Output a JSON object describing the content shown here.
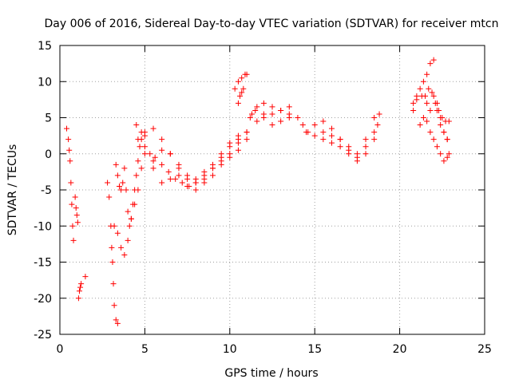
{
  "chart_data": {
    "type": "scatter",
    "title": "Day 006 of 2016, Sidereal Day-to-day VTEC variation (SDTVAR) for receiver mtcn",
    "xlabel": "GPS time / hours",
    "ylabel": "SDTVAR / TECUs",
    "xlim": [
      0,
      25
    ],
    "ylim": [
      -25,
      15
    ],
    "xticks": [
      0,
      5,
      10,
      15,
      20,
      25
    ],
    "yticks": [
      -25,
      -20,
      -15,
      -10,
      -5,
      0,
      5,
      10,
      15
    ],
    "grid": true,
    "marker": "+",
    "color": "#ff0000",
    "series": [
      {
        "name": "seg-a1",
        "x": [
          0.4,
          0.5,
          0.55,
          0.6,
          0.65,
          0.7,
          0.75,
          0.8
        ],
        "y": [
          3.5,
          2,
          0.5,
          -1,
          -4,
          -7,
          -10,
          -12
        ]
      },
      {
        "name": "seg-a2",
        "x": [
          0.9,
          0.95,
          1.0,
          1.05
        ],
        "y": [
          -6,
          -7.5,
          -8.5,
          -9.5
        ]
      },
      {
        "name": "seg-a3",
        "x": [
          1.1,
          1.15,
          1.2,
          1.25,
          1.5
        ],
        "y": [
          -20,
          -19,
          -18.5,
          -18,
          -17
        ]
      },
      {
        "name": "seg-b1",
        "x": [
          2.8,
          2.9,
          3.0,
          3.05,
          3.1,
          3.15,
          3.2,
          3.3,
          3.4
        ],
        "y": [
          -4,
          -6,
          -10,
          -13,
          -15,
          -18,
          -21,
          -23,
          -23.5
        ]
      },
      {
        "name": "seg-b2",
        "x": [
          3.3,
          3.4,
          3.5,
          3.6,
          3.7,
          3.8,
          3.9,
          4.0,
          4.1,
          4.2,
          4.3,
          4.4,
          4.5,
          4.6,
          4.7,
          4.8
        ],
        "y": [
          -1.5,
          -3,
          -4.5,
          -5,
          -4,
          -2,
          -5,
          -8,
          -10,
          -9,
          -7,
          -5,
          -3,
          -1,
          1,
          3
        ]
      },
      {
        "name": "seg-b3",
        "x": [
          3.2,
          3.4,
          3.6,
          3.8,
          4.0,
          4.2,
          4.4,
          4.6,
          4.8,
          5.0
        ],
        "y": [
          -10,
          -11,
          -13,
          -14,
          -12,
          -9,
          -7,
          -5,
          -2,
          2.5
        ]
      },
      {
        "name": "seg-c1",
        "x": [
          4.5,
          4.8,
          5.0,
          5.3,
          5.6,
          6.0,
          6.4,
          6.8,
          7.2,
          7.6,
          8.0,
          8.5,
          9.0,
          9.5,
          10.0,
          10.5
        ],
        "y": [
          4,
          2,
          1,
          0,
          -0.5,
          -1.5,
          -2.5,
          -3.5,
          -4,
          -4.5,
          -4,
          -3,
          -2,
          -1,
          0,
          1.5
        ]
      },
      {
        "name": "seg-c2",
        "x": [
          4.6,
          5.0,
          5.5,
          6.0,
          6.5,
          7.0,
          7.5,
          8.0,
          8.5,
          9.0,
          9.5,
          10.0,
          10.5,
          11.0
        ],
        "y": [
          2,
          3,
          3.5,
          2,
          0,
          -2,
          -3.5,
          -4,
          -3.5,
          -2,
          -0.5,
          1,
          2,
          3
        ]
      },
      {
        "name": "seg-c3",
        "x": [
          5.0,
          5.5,
          6.0,
          6.5,
          7.0,
          7.5,
          8.0,
          8.5,
          9.0,
          9.5,
          10.0,
          10.5
        ],
        "y": [
          0,
          -1,
          0.5,
          0,
          -1.5,
          -3,
          -3.5,
          -2.5,
          -1.5,
          0,
          1.5,
          2.5
        ]
      },
      {
        "name": "seg-c4",
        "x": [
          5.5,
          6.0,
          6.5,
          7.0,
          7.5,
          8.0,
          8.5,
          9.0,
          9.5,
          10.0,
          10.5,
          11.0
        ],
        "y": [
          -2,
          -4,
          -3.5,
          -3,
          -4.5,
          -5,
          -4,
          -3,
          -1.5,
          -0.5,
          0.5,
          2
        ]
      },
      {
        "name": "seg-d1",
        "x": [
          10.3,
          10.5,
          10.7,
          10.9,
          11.0
        ],
        "y": [
          9,
          10,
          10.5,
          11,
          11
        ]
      },
      {
        "name": "seg-d2",
        "x": [
          10.5,
          10.6,
          10.7,
          10.8
        ],
        "y": [
          7,
          8,
          8.5,
          9
        ]
      },
      {
        "name": "seg-d3",
        "x": [
          11.0,
          11.3,
          11.6,
          12.0,
          12.5,
          13.0,
          13.5,
          14.0,
          14.3,
          14.6,
          15.0,
          15.5,
          16.0,
          16.5,
          17.0,
          17.5,
          18.0,
          18.5,
          18.8
        ],
        "y": [
          3,
          5.5,
          6.5,
          7,
          6.5,
          6,
          5.5,
          5,
          4,
          3,
          4,
          4.5,
          3.5,
          2,
          0,
          -0.5,
          1,
          3,
          5.5
        ]
      },
      {
        "name": "seg-d4",
        "x": [
          11.2,
          11.6,
          12.0,
          12.5,
          13.0,
          13.5,
          14.5,
          15.0,
          15.5,
          16.0,
          16.5,
          17.0,
          17.5,
          18.0,
          18.5,
          18.7
        ],
        "y": [
          5,
          4.5,
          5,
          4,
          4.5,
          5,
          3,
          2.5,
          3,
          2.5,
          2,
          1,
          -1,
          0,
          2,
          4
        ]
      },
      {
        "name": "seg-d5",
        "x": [
          11.5,
          12.0,
          12.5,
          13.0,
          13.5,
          15.5,
          16.0,
          16.5,
          17.0,
          17.5,
          18.0,
          18.5
        ],
        "y": [
          6,
          5.5,
          5.5,
          6,
          6.5,
          2,
          1.5,
          1,
          0.5,
          0,
          2,
          5
        ]
      },
      {
        "name": "seg-e1",
        "x": [
          20.8,
          21.0,
          21.2,
          21.4,
          21.6,
          21.8,
          22.0,
          22.2,
          22.4,
          22.6,
          22.8,
          22.9
        ],
        "y": [
          7,
          8,
          9,
          10,
          11,
          12.5,
          13,
          7,
          5,
          3,
          2,
          0
        ]
      },
      {
        "name": "seg-e2",
        "x": [
          20.8,
          21.0,
          21.3,
          21.6,
          21.8,
          22.0,
          22.2,
          22.4,
          22.6,
          22.8
        ],
        "y": [
          6,
          7.5,
          8,
          7,
          6,
          8,
          6,
          4,
          3,
          2
        ]
      },
      {
        "name": "seg-e3",
        "x": [
          21.2,
          21.4,
          21.6,
          21.8,
          22.0,
          22.2,
          22.4,
          22.6,
          22.8
        ],
        "y": [
          4,
          5,
          4.5,
          3,
          2,
          1,
          0,
          -1,
          -0.5
        ]
      },
      {
        "name": "seg-e4",
        "x": [
          21.5,
          21.7,
          21.9,
          22.1,
          22.3,
          22.5,
          22.7,
          22.9
        ],
        "y": [
          8,
          9,
          8.5,
          7,
          6,
          5,
          4.5,
          4.5
        ]
      }
    ]
  }
}
